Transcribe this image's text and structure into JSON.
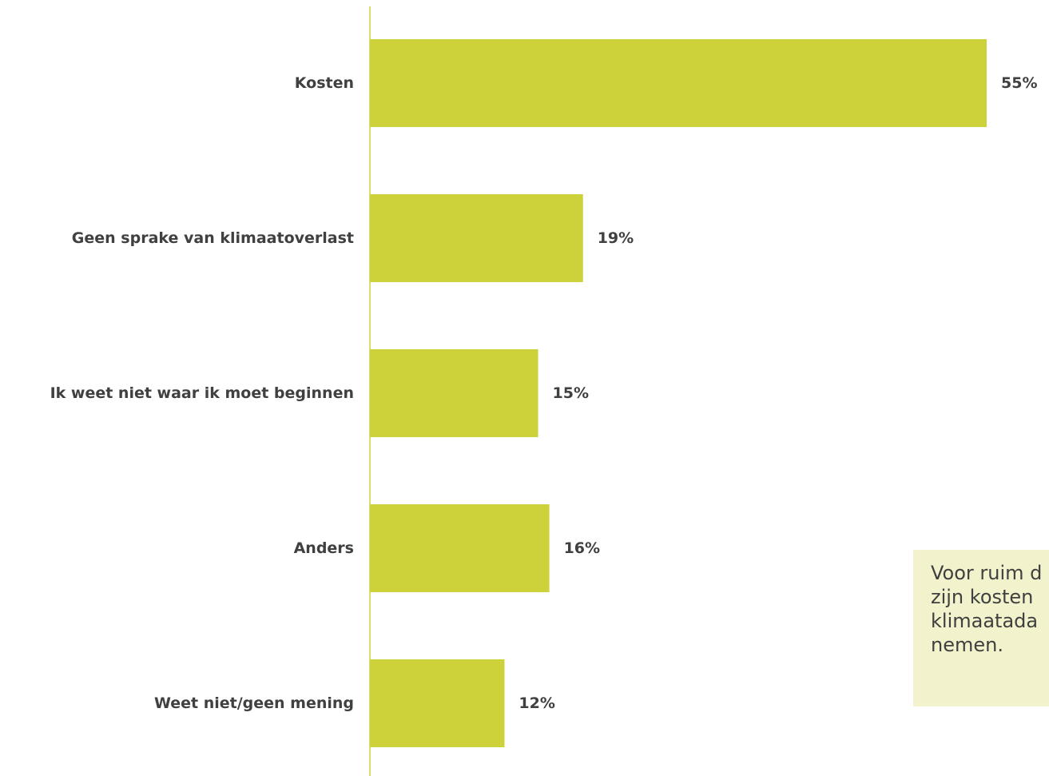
{
  "chart_data": {
    "type": "bar",
    "orientation": "horizontal",
    "categories": [
      "Kosten",
      "Geen sprake van klimaatoverlast",
      "Ik weet niet waar ik moet beginnen",
      "Anders",
      "Weet niet/geen mening"
    ],
    "values": [
      55,
      19,
      15,
      16,
      12
    ],
    "value_labels": [
      "55%",
      "19%",
      "15%",
      "16%",
      "12%"
    ],
    "unit": "%",
    "xlim": [
      0,
      55
    ],
    "grid": false,
    "legend": "none",
    "title": "",
    "xlabel": "",
    "ylabel": ""
  },
  "colors": {
    "bar": "#cdd13a",
    "axis": "#cdd13a",
    "text": "#404040",
    "callout_bg": "#f2f2cc"
  },
  "callout": {
    "lines": "Voor ruim d\nzijn kosten \nklimaatada\nnemen."
  }
}
